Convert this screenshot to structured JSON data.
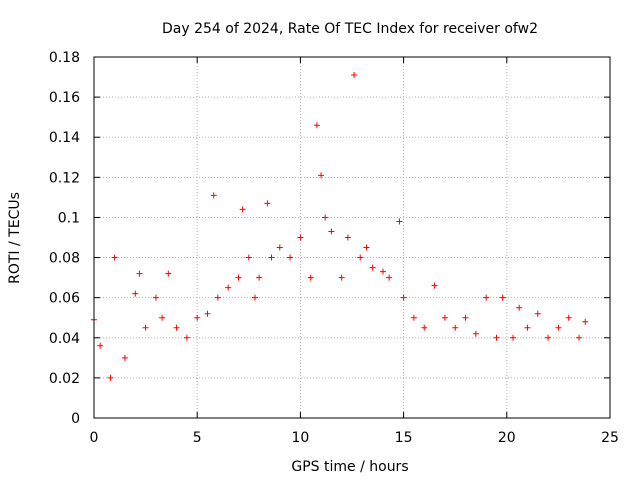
{
  "chart_data": {
    "type": "scatter",
    "title": "Day 254 of 2024, Rate Of TEC Index for receiver ofw2",
    "xlabel": "GPS time / hours",
    "ylabel": "ROTI / TECUs",
    "xlim": [
      0,
      25
    ],
    "ylim": [
      0,
      0.18
    ],
    "x_ticks": [
      "0",
      "5",
      "10",
      "15",
      "20",
      "25"
    ],
    "y_ticks": [
      "0",
      "0.02",
      "0.04",
      "0.06",
      "0.08",
      "0.1",
      "0.12",
      "0.14",
      "0.16",
      "0.18"
    ],
    "grid": true,
    "marker": "+",
    "color": "#ff0000",
    "series": [
      {
        "x": [
          0.0,
          0.3,
          0.8,
          1.0,
          1.5,
          2.0,
          2.2,
          2.5,
          3.0,
          3.3,
          3.6,
          4.0,
          4.5,
          5.0,
          5.5,
          5.8,
          6.0,
          6.5,
          7.0,
          7.2,
          7.5,
          7.8,
          8.0,
          8.4,
          8.6,
          9.0,
          9.5,
          10.0,
          10.5,
          10.8,
          11.0,
          11.2,
          11.5,
          12.0,
          12.3,
          12.6,
          12.9,
          13.2,
          13.5,
          14.0,
          14.3,
          14.8,
          15.0,
          15.5,
          16.0,
          16.5,
          17.0,
          17.5,
          18.0,
          18.5,
          19.0,
          19.5,
          19.8,
          20.3,
          20.6,
          21.0,
          21.5,
          22.0,
          22.5,
          23.0,
          23.5,
          23.8
        ],
        "y": [
          0.049,
          0.036,
          0.02,
          0.08,
          0.03,
          0.062,
          0.072,
          0.045,
          0.06,
          0.05,
          0.072,
          0.045,
          0.04,
          0.05,
          0.052,
          0.111,
          0.06,
          0.065,
          0.07,
          0.104,
          0.08,
          0.06,
          0.07,
          0.107,
          0.08,
          0.085,
          0.08,
          0.09,
          0.07,
          0.146,
          0.121,
          0.1,
          0.093,
          0.07,
          0.09,
          0.171,
          0.08,
          0.085,
          0.075,
          0.073,
          0.07,
          0.098,
          0.06,
          0.05,
          0.045,
          0.066,
          0.05,
          0.045,
          0.05,
          0.042,
          0.06,
          0.04,
          0.06,
          0.04,
          0.055,
          0.045,
          0.052,
          0.04,
          0.045,
          0.05,
          0.04,
          0.048
        ]
      }
    ]
  }
}
